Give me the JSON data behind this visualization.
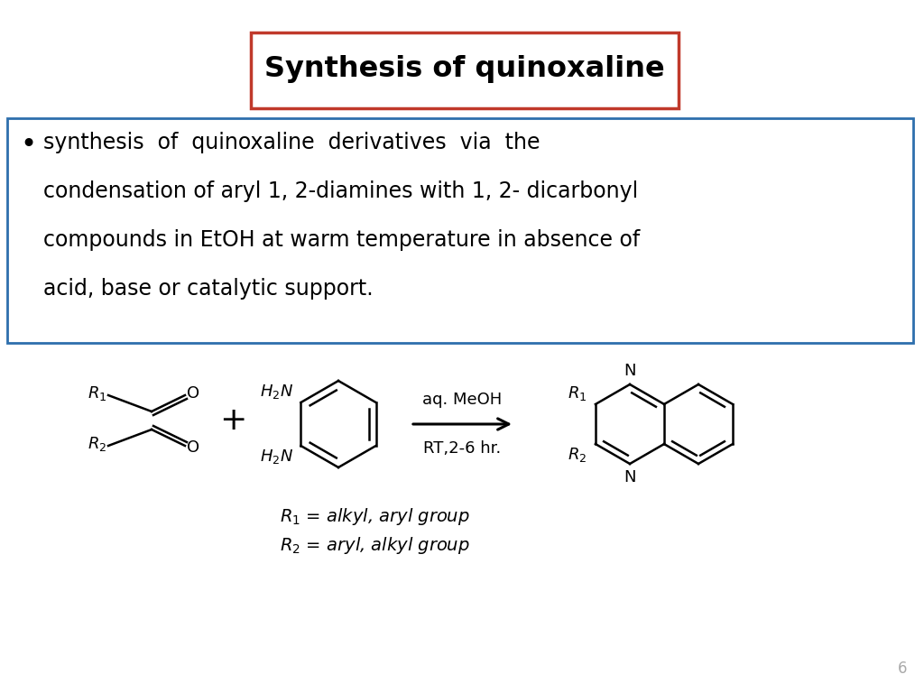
{
  "title": "Synthesis of quinoxaline",
  "title_box_color": "#c0392b",
  "bullet_text": "synthesis  of  quinoxaline  derivatives  via  the\ncondensation of aryl 1, 2-diamines with 1, 2- dicarbonyl\ncompounds in EtOH at warm temperature in absence of\nacid, base or catalytic support.",
  "bullet_box_color": "#2e6fad",
  "reaction_condition_top": "aq. MeOH",
  "reaction_condition_bottom": "RT,2-6 hr.",
  "legend_line1": "$R_1$ = alkyl, aryl group",
  "legend_line2": "$R_2$ = aryl, alkyl group",
  "page_number": "6",
  "bg_color": "#ffffff",
  "text_color": "#000000"
}
